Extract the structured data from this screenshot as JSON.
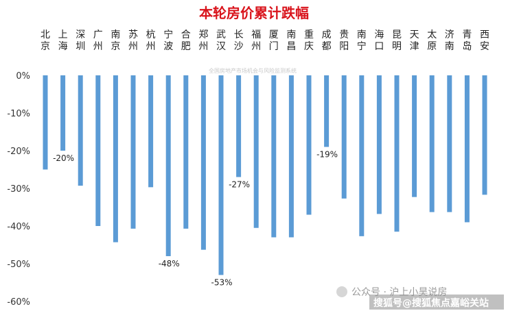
{
  "chart_data": {
    "type": "bar",
    "title": "本轮房价累计跌幅",
    "categories": [
      "北京",
      "上海",
      "深圳",
      "广州",
      "南京",
      "苏州",
      "杭州",
      "宁波",
      "合肥",
      "郑州",
      "武汉",
      "长沙",
      "福州",
      "厦门",
      "南昌",
      "重庆",
      "成都",
      "贵阳",
      "南宁",
      "海口",
      "昆明",
      "天津",
      "太原",
      "济南",
      "青岛",
      "西安"
    ],
    "values": [
      -25,
      -20,
      -29.3,
      -40,
      -44.3,
      -40.7,
      -29.7,
      -48,
      -40.7,
      -46.3,
      -53,
      -27,
      -40.5,
      -43,
      -43,
      -37,
      -19,
      -32.7,
      -42.7,
      -36.8,
      -41.5,
      -32.3,
      -36.3,
      -36.3,
      -39,
      -31.7
    ],
    "data_labels": [
      {
        "index": 1,
        "text": "-20%"
      },
      {
        "index": 7,
        "text": "-48%"
      },
      {
        "index": 10,
        "text": "-53%"
      },
      {
        "index": 11,
        "text": "-27%"
      },
      {
        "index": 16,
        "text": "-19%"
      }
    ],
    "yticks": [
      "0%",
      "-10%",
      "-20%",
      "-30%",
      "-40%",
      "-50%",
      "-60%"
    ],
    "ylim": [
      -60,
      0
    ],
    "grid": false,
    "bar_color": "#5b9bd5"
  },
  "watermarks": {
    "source_text": "全国房地产市场机会与风险监测系统",
    "account_text": "公众号 · 沪上小昊说房",
    "site_text": "搜狐号@搜狐焦点嘉峪关站"
  }
}
